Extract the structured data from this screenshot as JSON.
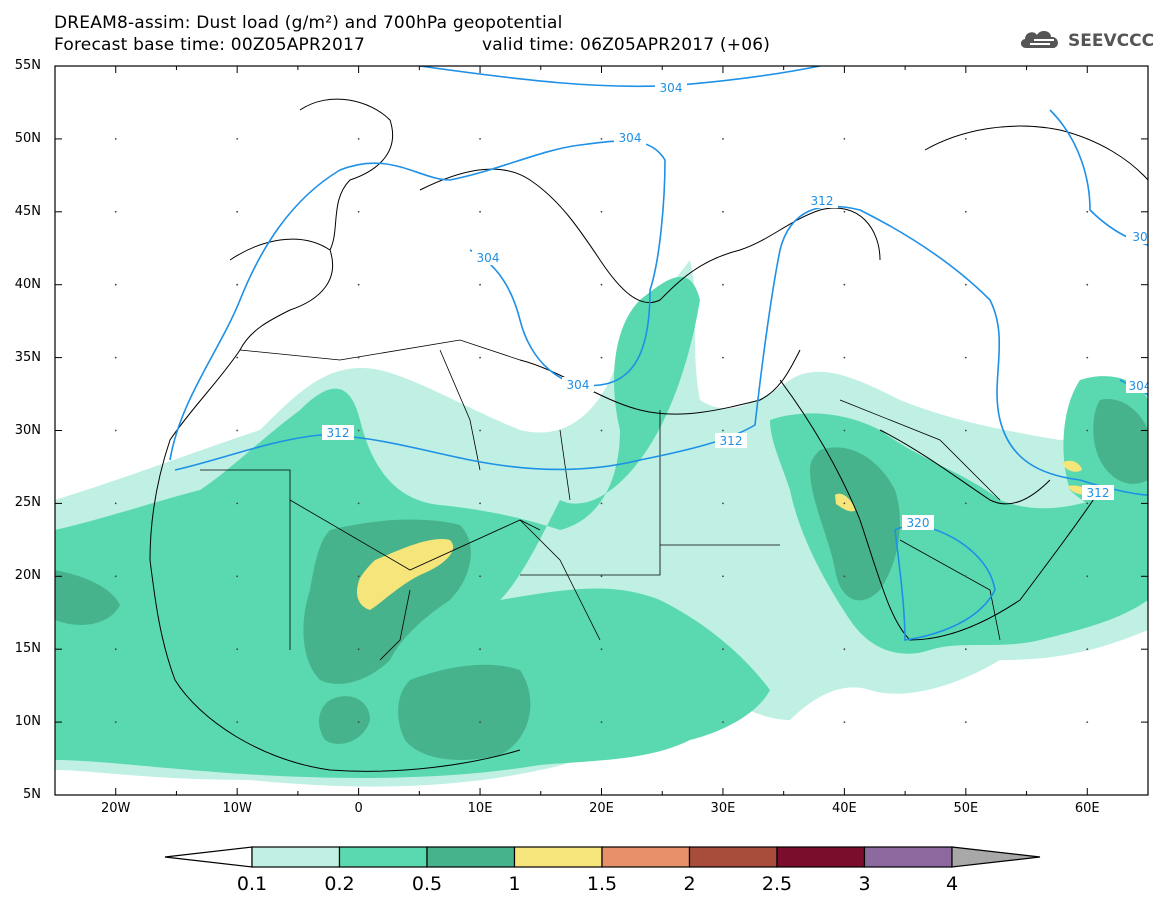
{
  "title": {
    "line1": "DREAM8-assim: Dust load (g/m²) and 700hPa geopotential",
    "line2_left": "Forecast base time: 00Z05APR2017",
    "line2_right": "valid time: 06Z05APR2017 (+06)"
  },
  "logo": {
    "text": "SEEVCCC",
    "icon": "cloud-icon"
  },
  "axes": {
    "lat_labels": [
      "55N",
      "50N",
      "45N",
      "40N",
      "35N",
      "30N",
      "25N",
      "20N",
      "15N",
      "10N",
      "5N"
    ],
    "lon_labels": [
      "20W",
      "10W",
      "0",
      "10E",
      "20E",
      "30E",
      "40E",
      "50E",
      "60E"
    ],
    "lon_range": [
      -25,
      65
    ],
    "lat_range": [
      5,
      55
    ]
  },
  "contours": {
    "geopotential_labels": [
      "304",
      "304",
      "304",
      "304",
      "312",
      "312",
      "312",
      "312",
      "320",
      "304",
      "30"
    ]
  },
  "colorbar": {
    "labels": [
      "0.1",
      "0.2",
      "0.5",
      "1",
      "1.5",
      "2",
      "2.5",
      "3",
      "4"
    ],
    "colors": [
      "#bff0e3",
      "#5ad9b0",
      "#47b38c",
      "#f5e57a",
      "#e8906a",
      "#a84c3c",
      "#7a0d2c",
      "#8c6aa0"
    ],
    "under_color": "#ffffff",
    "over_color": "#a8a8a8"
  },
  "colors": {
    "contour": "#1e90e6",
    "coast": "#000000",
    "dust_light": "#bff0e3",
    "dust_mid": "#5ad9b0",
    "dust_dark": "#47b38c",
    "dust_yellow": "#f5e57a"
  }
}
